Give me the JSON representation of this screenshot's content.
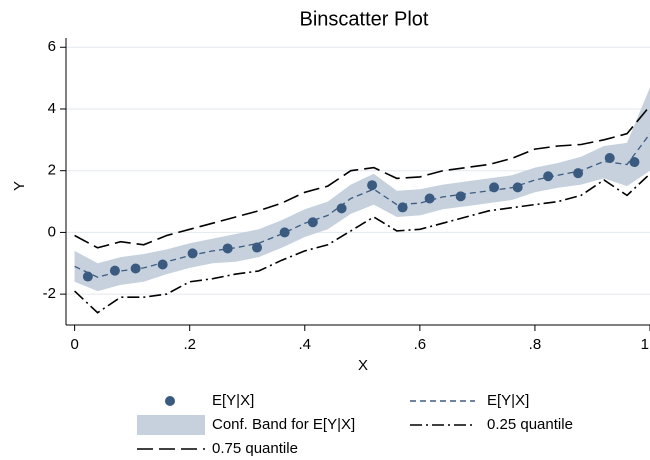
{
  "chart_data": {
    "type": "binscatter",
    "title": "Binscatter Plot",
    "x_label": "X",
    "y_label": "Y",
    "xlim": [
      -0.015,
      1
    ],
    "ylim": [
      -3,
      6.3
    ],
    "xticks": [
      0,
      {
        "value": 0.2,
        "label": ".2"
      },
      {
        "value": 0.4,
        "label": ".4"
      },
      {
        "value": 0.6,
        "label": ".6"
      },
      {
        "value": 0.8,
        "label": ".8"
      },
      1
    ],
    "yticks": [
      -2,
      0,
      2,
      4,
      6
    ],
    "grid": true,
    "x": [
      0,
      0.04,
      0.08,
      0.12,
      0.16,
      0.2,
      0.24,
      0.28,
      0.32,
      0.36,
      0.4,
      0.44,
      0.48,
      0.52,
      0.56,
      0.6,
      0.64,
      0.68,
      0.72,
      0.76,
      0.8,
      0.84,
      0.88,
      0.92,
      0.96,
      1
    ],
    "series": [
      {
        "name": "Conf. Band for E[Y|X]",
        "style": "band",
        "color": "#c6d1dd",
        "lower": [
          -1.6,
          -1.9,
          -1.7,
          -1.6,
          -1.35,
          -1.15,
          -1.0,
          -0.95,
          -0.8,
          -0.5,
          -0.15,
          0.1,
          0.6,
          0.9,
          0.5,
          0.55,
          0.75,
          0.85,
          0.95,
          1.05,
          1.3,
          1.45,
          1.55,
          1.75,
          1.5,
          2.0
        ],
        "upper": [
          -0.6,
          -1.0,
          -0.8,
          -0.7,
          -0.55,
          -0.35,
          -0.2,
          -0.05,
          0.1,
          0.4,
          0.75,
          1.0,
          1.55,
          1.9,
          1.35,
          1.4,
          1.55,
          1.65,
          1.75,
          1.85,
          2.1,
          2.25,
          2.45,
          2.8,
          2.9,
          4.7
        ]
      },
      {
        "name": "E[Y|X]",
        "style": "dash",
        "color": "#3e5b80",
        "values": [
          -1.1,
          -1.45,
          -1.25,
          -1.15,
          -0.95,
          -0.75,
          -0.6,
          -0.5,
          -0.35,
          -0.05,
          0.3,
          0.55,
          1.1,
          1.4,
          0.9,
          0.95,
          1.15,
          1.25,
          1.35,
          1.45,
          1.7,
          1.85,
          2.0,
          2.3,
          2.2,
          3.2
        ]
      },
      {
        "name": "0.25 quantile",
        "style": "dashdot",
        "color": "#000000",
        "values": [
          -1.9,
          -2.6,
          -2.1,
          -2.1,
          -2.0,
          -1.6,
          -1.5,
          -1.35,
          -1.25,
          -0.9,
          -0.6,
          -0.4,
          0.05,
          0.5,
          0.05,
          0.1,
          0.3,
          0.5,
          0.7,
          0.8,
          0.9,
          1.0,
          1.2,
          1.7,
          1.2,
          1.9
        ]
      },
      {
        "name": "0.75 quantile",
        "style": "longdash",
        "color": "#000000",
        "values": [
          -0.1,
          -0.5,
          -0.3,
          -0.4,
          -0.1,
          0.1,
          0.3,
          0.5,
          0.7,
          0.95,
          1.3,
          1.5,
          2.0,
          2.1,
          1.75,
          1.8,
          2.0,
          2.1,
          2.2,
          2.4,
          2.7,
          2.8,
          2.85,
          3.0,
          3.2,
          4.1
        ]
      },
      {
        "name": "E[Y|X]",
        "style": "marker",
        "color": "#3b5a80",
        "x": [
          0.023,
          0.07,
          0.106,
          0.153,
          0.205,
          0.266,
          0.317,
          0.365,
          0.414,
          0.464,
          0.517,
          0.57,
          0.617,
          0.671,
          0.729,
          0.77,
          0.823,
          0.875,
          0.93,
          0.973
        ],
        "values": [
          -1.43,
          -1.24,
          -1.17,
          -1.04,
          -0.68,
          -0.52,
          -0.49,
          0,
          0.33,
          0.78,
          1.53,
          0.81,
          1.1,
          1.17,
          1.46,
          1.46,
          1.82,
          1.92,
          2.41,
          2.28
        ]
      }
    ]
  }
}
